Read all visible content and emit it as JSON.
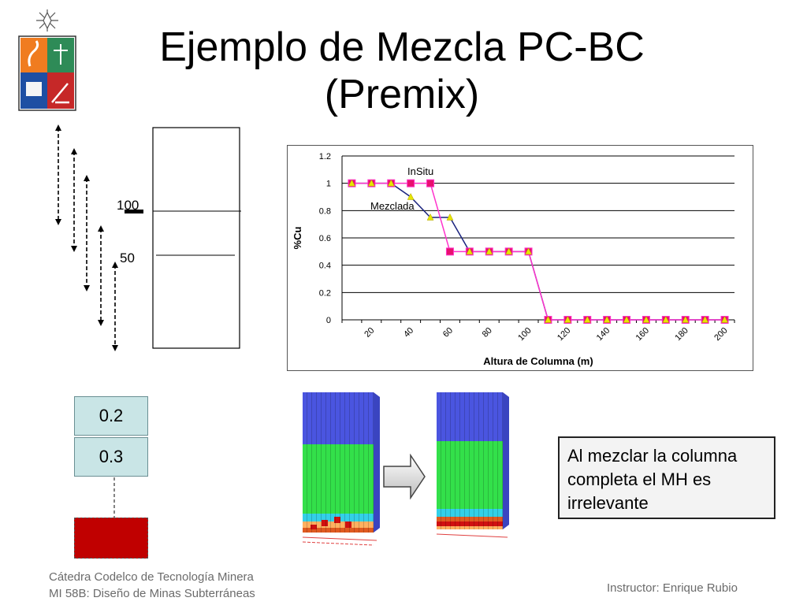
{
  "slide": {
    "title_line1": "Ejemplo de Mezcla PC-BC",
    "title_line2": "(Premix)",
    "footer_left_line1": "Cátedra Codelco de Tecnología Minera",
    "footer_left_line2": "MI 58B: Diseño de Minas Subterráneas",
    "footer_right": "Instructor: Enrique Rubio",
    "callout_text": "Al mezclar la columna completa el MH es irrelevante",
    "diagram": {
      "level_100": "100",
      "level_50": "50"
    },
    "grades": {
      "upper": "0.2",
      "lower": "0.3"
    },
    "colors": {
      "grade_box": "#c9e5e6",
      "extraction_block": "#c00000",
      "pink": "#ff33cc",
      "navy": "#1a237e",
      "yellow": "#e6e600"
    }
  },
  "chart_data": {
    "type": "line",
    "xlabel": "Altura de Columna (m)",
    "ylabel": "%Cu",
    "x": [
      10,
      20,
      30,
      40,
      50,
      60,
      70,
      80,
      90,
      100,
      110,
      120,
      130,
      140,
      150,
      160,
      170,
      180,
      190,
      200
    ],
    "x_tick_labels": [
      "20",
      "40",
      "60",
      "80",
      "100",
      "120",
      "140",
      "160",
      "180",
      "200"
    ],
    "y_tick_labels": [
      "0",
      "0.2",
      "0.4",
      "0.6",
      "0.8",
      "1",
      "1.2"
    ],
    "ylim": [
      0,
      1.2
    ],
    "grid": true,
    "series": [
      {
        "name": "InSitu",
        "color": "#ff33cc",
        "marker": "square",
        "values": [
          1,
          1,
          1,
          1,
          1,
          0.5,
          0.5,
          0.5,
          0.5,
          0.5,
          0,
          0,
          0,
          0,
          0,
          0,
          0,
          0,
          0,
          0
        ]
      },
      {
        "name": "Mezclada",
        "color": "#1a237e",
        "marker": "triangle",
        "values": [
          1,
          1,
          1,
          0.9,
          0.75,
          0.75,
          0.5,
          0.5,
          0.5,
          0.5,
          0,
          0,
          0,
          0,
          0,
          0,
          0,
          0,
          0,
          0
        ]
      }
    ]
  }
}
